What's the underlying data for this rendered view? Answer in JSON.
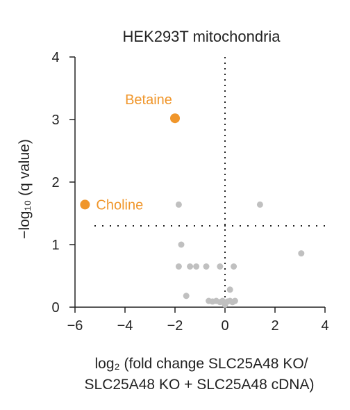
{
  "chart_data": {
    "type": "scatter",
    "title": "HEK293T mitochondria",
    "xlim": [
      -6,
      4
    ],
    "ylim": [
      0,
      4
    ],
    "xticks": [
      "−6",
      "−4",
      "−2",
      "0",
      "2",
      "4"
    ],
    "yticks": [
      "0",
      "1",
      "2",
      "3",
      "4"
    ],
    "xlabel": {
      "line1": "log₂ (fold change SLC25A48 KO/",
      "line2": "SLC25A48 KO + SLC25A48 cDNA)"
    },
    "ylabel": "−log₁₀ (q value)",
    "reference_lines": {
      "vertical_x": 0,
      "horizontal_y": 1.3
    },
    "colors": {
      "highlight": "#f0962b",
      "other": "#c0c0c0"
    },
    "highlighted": [
      {
        "label": "Betaine",
        "x": -2.0,
        "y": 3.02
      },
      {
        "label": "Choline",
        "x": -5.6,
        "y": 1.64
      }
    ],
    "other_points": [
      {
        "x": -1.85,
        "y": 1.64
      },
      {
        "x": 1.4,
        "y": 1.64
      },
      {
        "x": -1.75,
        "y": 1.0
      },
      {
        "x": 3.05,
        "y": 0.86
      },
      {
        "x": -1.85,
        "y": 0.65
      },
      {
        "x": -1.4,
        "y": 0.65
      },
      {
        "x": -1.15,
        "y": 0.65
      },
      {
        "x": -0.75,
        "y": 0.65
      },
      {
        "x": -0.2,
        "y": 0.65
      },
      {
        "x": 0.35,
        "y": 0.65
      },
      {
        "x": 0.2,
        "y": 0.28
      },
      {
        "x": -1.55,
        "y": 0.18
      },
      {
        "x": -0.65,
        "y": 0.1
      },
      {
        "x": -0.5,
        "y": 0.09
      },
      {
        "x": -0.35,
        "y": 0.1
      },
      {
        "x": -0.2,
        "y": 0.08
      },
      {
        "x": -0.1,
        "y": 0.1
      },
      {
        "x": 0.0,
        "y": 0.04
      },
      {
        "x": 0.1,
        "y": 0.09
      },
      {
        "x": 0.2,
        "y": 0.1
      },
      {
        "x": 0.3,
        "y": 0.08
      },
      {
        "x": 0.4,
        "y": 0.1
      }
    ]
  }
}
